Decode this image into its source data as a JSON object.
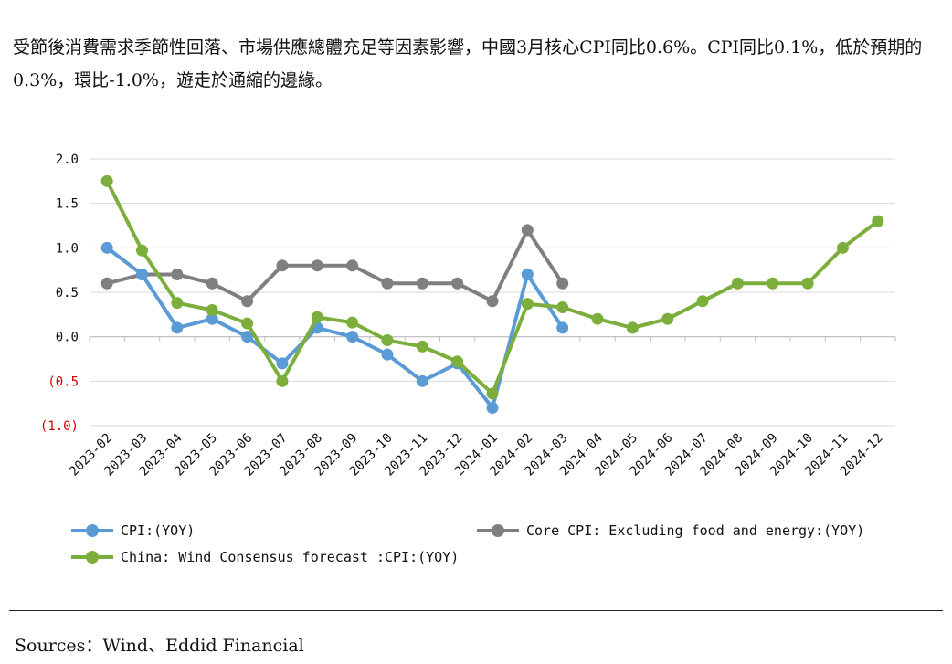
{
  "summary_text": "受節後消費需求季節性回落、市場供應總體充足等因素影響，中國3月核心CPI同比0.6%。CPI同比0.1%，低於預期的0.3%，環比-1.0%，遊走於通縮的邊緣。",
  "sources_text": "Sources：Wind、Eddid Financial",
  "chart_data": {
    "type": "line",
    "title": "",
    "xlabel": "",
    "ylabel": "",
    "ylim": [
      -1.0,
      2.0
    ],
    "y_ticks": [
      {
        "value": 2.0,
        "label": "2.0",
        "color": "#111111"
      },
      {
        "value": 1.5,
        "label": "1.5",
        "color": "#111111"
      },
      {
        "value": 1.0,
        "label": "1.0",
        "color": "#111111"
      },
      {
        "value": 0.5,
        "label": "0.5",
        "color": "#111111"
      },
      {
        "value": 0.0,
        "label": "0.0",
        "color": "#111111"
      },
      {
        "value": -0.5,
        "label": "(0.5",
        "color": "#d40000"
      },
      {
        "value": -1.0,
        "label": "(1.0)",
        "color": "#d40000"
      }
    ],
    "grid": true,
    "legend_position": "bottom",
    "categories": [
      "2023-02",
      "2023-03",
      "2023-04",
      "2023-05",
      "2023-06",
      "2023-07",
      "2023-08",
      "2023-09",
      "2023-10",
      "2023-11",
      "2023-12",
      "2024-01",
      "2024-02",
      "2024-03",
      "2024-04",
      "2024-05",
      "2024-06",
      "2024-07",
      "2024-08",
      "2024-09",
      "2024-10",
      "2024-11",
      "2024-12"
    ],
    "series": [
      {
        "name": "CPI:(YOY)",
        "color": "#5b9bd5",
        "values": [
          1.0,
          0.7,
          0.1,
          0.2,
          0.0,
          -0.3,
          0.1,
          0.0,
          -0.2,
          -0.5,
          -0.3,
          -0.8,
          0.7,
          0.1,
          null,
          null,
          null,
          null,
          null,
          null,
          null,
          null,
          null
        ]
      },
      {
        "name": "Core CPI: Excluding food and energy:(YOY)",
        "color": "#7f7f7f",
        "values": [
          0.6,
          0.7,
          0.7,
          0.6,
          0.4,
          0.8,
          0.8,
          0.8,
          0.6,
          0.6,
          0.6,
          0.4,
          1.2,
          0.6,
          null,
          null,
          null,
          null,
          null,
          null,
          null,
          null,
          null
        ]
      },
      {
        "name": "China: Wind Consensus forecast :CPI:(YOY)",
        "color": "#7cae3c",
        "values": [
          1.75,
          0.97,
          0.38,
          0.3,
          0.15,
          -0.5,
          0.22,
          0.16,
          -0.04,
          -0.11,
          -0.28,
          -0.64,
          0.37,
          0.33,
          0.2,
          0.1,
          0.2,
          0.4,
          0.6,
          0.6,
          0.6,
          1.0,
          1.3
        ]
      }
    ]
  }
}
